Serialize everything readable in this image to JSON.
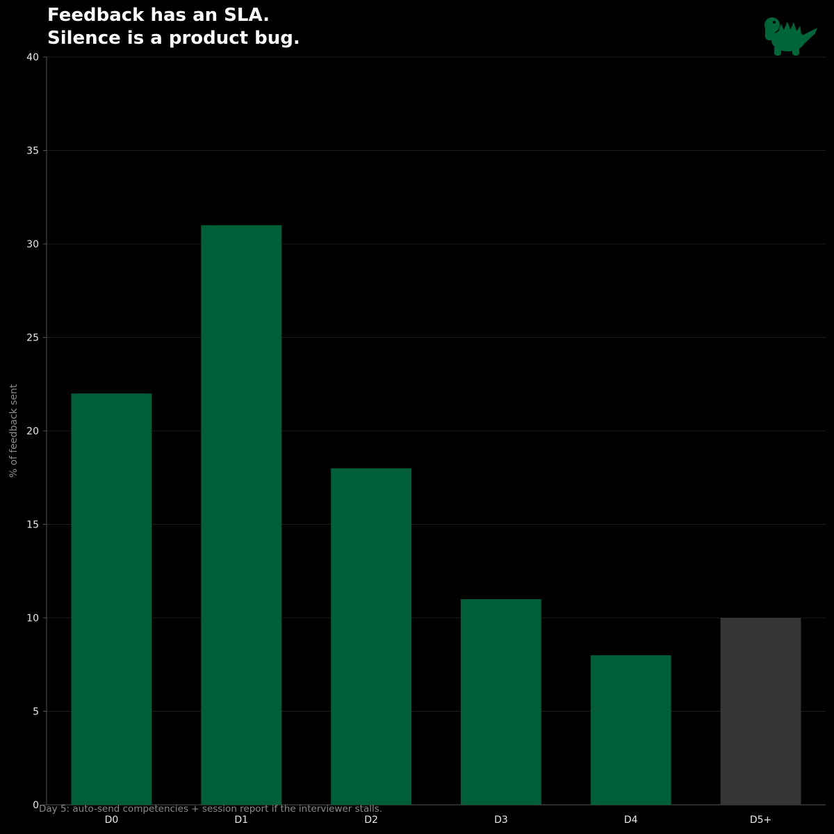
{
  "header": {
    "title_line1": "Feedback has an SLA.",
    "title_line2": "Silence is a product bug."
  },
  "logo": {
    "icon": "dinosaur-icon",
    "color": "#00663a"
  },
  "footnote": "Day 5: auto-send competencies + session report if the interviewer stalls.",
  "colors": {
    "background": "#000000",
    "bar_primary": "#005e38",
    "bar_muted": "#363636",
    "grid": "#1c1c1c",
    "axis": "#555555",
    "tick_text": "#e8e8e8",
    "label_text": "#8a8a8a"
  },
  "chart_data": {
    "type": "bar",
    "title": "Feedback has an SLA. Silence is a product bug.",
    "xlabel": "",
    "ylabel": "% of feedback sent",
    "categories": [
      "D0",
      "D1",
      "D2",
      "D3",
      "D4",
      "D5+"
    ],
    "values": [
      22,
      31,
      18,
      11,
      8,
      10
    ],
    "highlight": [
      true,
      true,
      true,
      true,
      true,
      false
    ],
    "ylim": [
      0,
      40
    ],
    "yticks": [
      0,
      5,
      10,
      15,
      20,
      25,
      30,
      35,
      40
    ],
    "grid": true,
    "legend": "none"
  }
}
